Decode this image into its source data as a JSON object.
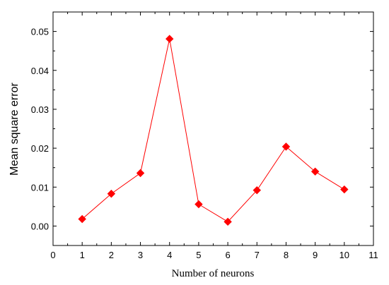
{
  "chart_data": {
    "type": "line",
    "title": "",
    "xlabel": "Number of neurons",
    "ylabel": "Mean square error",
    "xlim": [
      0,
      11
    ],
    "ylim": [
      -0.005,
      0.055
    ],
    "x_ticks": [
      "0",
      "1",
      "2",
      "3",
      "4",
      "5",
      "6",
      "7",
      "8",
      "9",
      "10",
      "11"
    ],
    "y_ticks": [
      "0.00",
      "0.01",
      "0.02",
      "0.03",
      "0.04",
      "0.05"
    ],
    "grid": false,
    "legend": "none",
    "marker": "diamond",
    "series": [
      {
        "color": "#ff0000",
        "x": [
          1,
          2,
          3,
          4,
          5,
          6,
          7,
          8,
          9,
          10
        ],
        "y": [
          0.0018,
          0.0083,
          0.0136,
          0.0481,
          0.0056,
          0.0011,
          0.0092,
          0.0204,
          0.014,
          0.0094
        ]
      }
    ]
  }
}
